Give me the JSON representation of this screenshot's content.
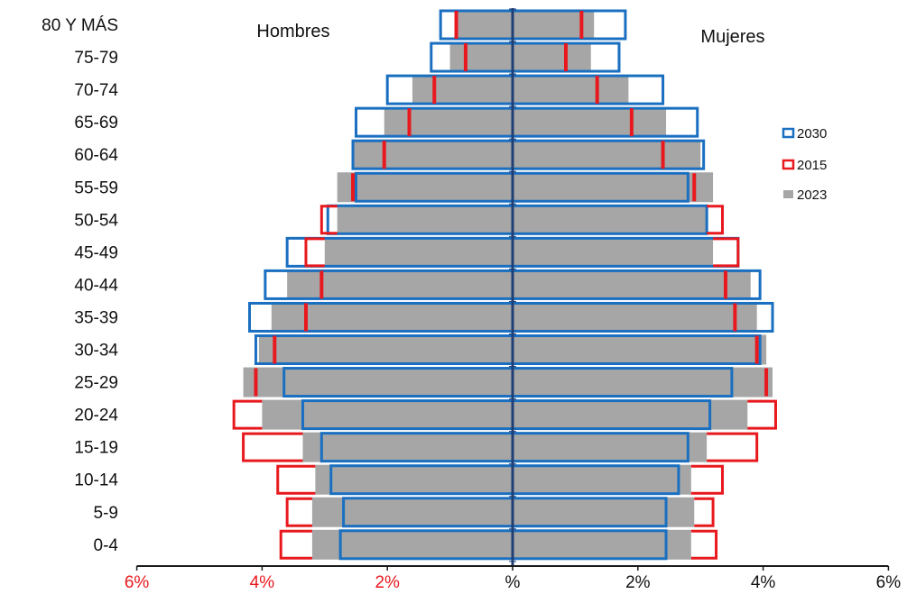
{
  "chart_data": {
    "type": "bar",
    "orientation": "horizontal",
    "layout": "population-pyramid",
    "side_labels": {
      "left": "Hombres",
      "right": "Mujeres"
    },
    "center_label": "%",
    "x_tick_labels": [
      "6%",
      "4%",
      "2%",
      "%",
      "2%",
      "4%",
      "6%"
    ],
    "x_ticks": [
      -6,
      -4,
      -2,
      0,
      2,
      4,
      6
    ],
    "xlim": [
      -6,
      6
    ],
    "categories": [
      "0-4",
      "5-9",
      "10-14",
      "15-19",
      "20-24",
      "25-29",
      "30-34",
      "35-39",
      "40-44",
      "45-49",
      "50-54",
      "55-59",
      "60-64",
      "65-69",
      "70-74",
      "75-79",
      "80 Y MÁS"
    ],
    "series": [
      {
        "name": "2030",
        "style": "outline",
        "color": "#1a6fc0",
        "men": [
          2.75,
          2.7,
          2.9,
          3.05,
          3.35,
          3.65,
          4.1,
          4.2,
          3.95,
          3.6,
          2.95,
          2.5,
          2.55,
          2.5,
          2.0,
          1.3,
          1.15
        ],
        "women": [
          2.45,
          2.45,
          2.65,
          2.8,
          3.15,
          3.5,
          3.95,
          4.15,
          3.95,
          3.6,
          3.1,
          2.8,
          3.05,
          2.95,
          2.4,
          1.7,
          1.8
        ]
      },
      {
        "name": "2015",
        "style": "outline",
        "color": "#e8191e",
        "men": [
          3.7,
          3.6,
          3.75,
          4.3,
          4.45,
          4.1,
          3.8,
          3.3,
          3.05,
          3.3,
          3.05,
          2.55,
          2.05,
          1.65,
          1.25,
          0.75,
          0.9
        ],
        "women": [
          3.25,
          3.2,
          3.35,
          3.9,
          4.2,
          4.05,
          3.9,
          3.55,
          3.4,
          3.6,
          3.35,
          2.9,
          2.4,
          1.9,
          1.35,
          0.85,
          1.1
        ]
      },
      {
        "name": "2023",
        "style": "filled",
        "color": "#a6a6a6",
        "men": [
          3.2,
          3.2,
          3.15,
          3.35,
          4.0,
          4.3,
          4.05,
          3.85,
          3.6,
          3.0,
          2.8,
          2.8,
          2.55,
          2.05,
          1.6,
          1.0,
          0.9
        ],
        "women": [
          2.85,
          2.9,
          2.85,
          3.1,
          3.75,
          4.15,
          4.05,
          3.9,
          3.8,
          3.2,
          3.1,
          3.2,
          3.0,
          2.45,
          1.85,
          1.25,
          1.3
        ]
      }
    ],
    "legend": {
      "placement": "right",
      "order": [
        "2030",
        "2015",
        "2023"
      ]
    },
    "grid": false
  }
}
